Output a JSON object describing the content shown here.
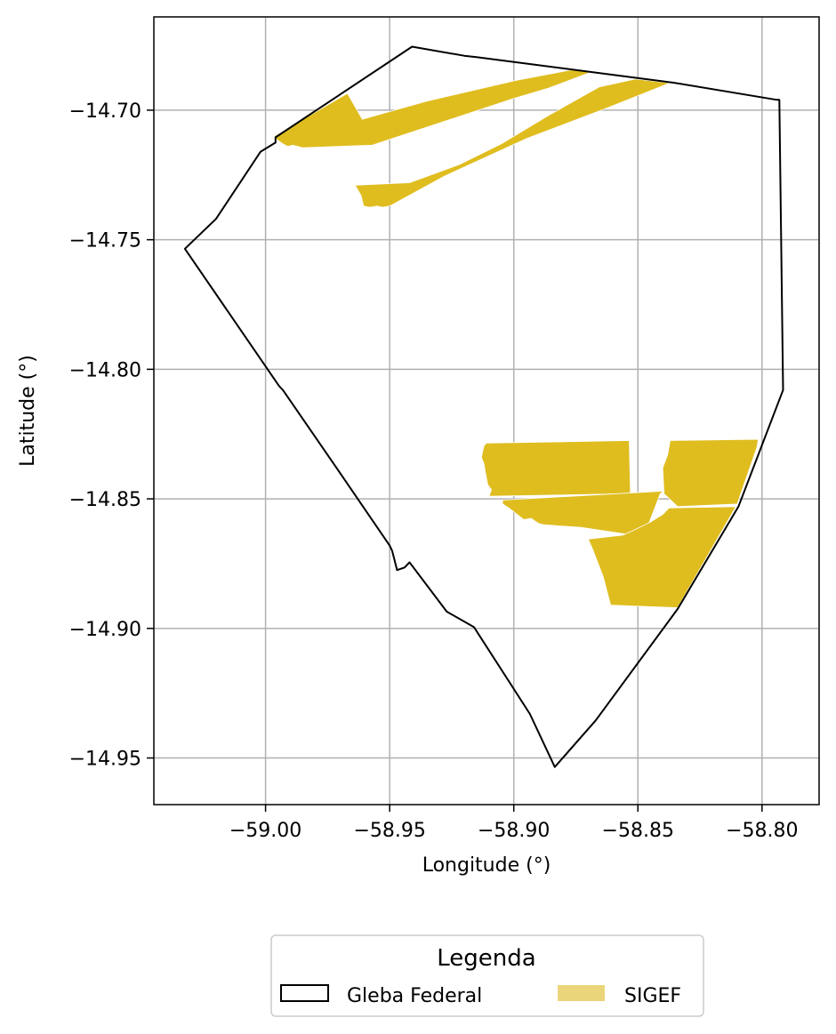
{
  "chart_data": {
    "type": "map",
    "xlabel": "Longitude (°)",
    "ylabel": "Latitude (°)",
    "xlim": [
      -59.045,
      -58.777
    ],
    "ylim": [
      -14.968,
      -14.664
    ],
    "grid": true,
    "x_ticks": [
      {
        "value": -59.0,
        "label": "−59.00"
      },
      {
        "value": -58.95,
        "label": "−58.95"
      },
      {
        "value": -58.9,
        "label": "−58.90"
      },
      {
        "value": -58.85,
        "label": "−58.85"
      },
      {
        "value": -58.8,
        "label": "−58.80"
      }
    ],
    "y_ticks": [
      {
        "value": -14.7,
        "label": "−14.70"
      },
      {
        "value": -14.75,
        "label": "−14.75"
      },
      {
        "value": -14.8,
        "label": "−14.80"
      },
      {
        "value": -14.85,
        "label": "−14.85"
      },
      {
        "value": -14.9,
        "label": "−14.90"
      },
      {
        "value": -14.95,
        "label": "−14.95"
      }
    ],
    "legend": {
      "title": "Legenda",
      "placement": "bottom-center",
      "entries": [
        {
          "key": "gleba",
          "label": "Gleba Federal"
        },
        {
          "key": "sigef",
          "label": "SIGEF"
        }
      ]
    },
    "layers": [
      {
        "key": "gleba",
        "name": "Gleba Federal",
        "stroke": "#000000",
        "fill": "none",
        "polygons": [
          [
            [
              -58.941,
              -14.6755
            ],
            [
              -58.92,
              -14.679
            ],
            [
              -58.915,
              -14.6795
            ],
            [
              -58.835,
              -14.6895
            ],
            [
              -58.794,
              -14.696
            ],
            [
              -58.793,
              -14.696
            ],
            [
              -58.7915,
              -14.808
            ],
            [
              -58.8095,
              -14.853
            ],
            [
              -58.834,
              -14.8925
            ],
            [
              -58.867,
              -14.9355
            ],
            [
              -58.8835,
              -14.9535
            ],
            [
              -58.8935,
              -14.933
            ],
            [
              -58.916,
              -14.8995
            ],
            [
              -58.927,
              -14.8935
            ],
            [
              -58.942,
              -14.8745
            ],
            [
              -58.944,
              -14.8765
            ],
            [
              -58.947,
              -14.8775
            ],
            [
              -58.949,
              -14.87
            ],
            [
              -58.95,
              -14.868
            ],
            [
              -58.97,
              -14.84
            ],
            [
              -58.993,
              -14.808
            ],
            [
              -58.9945,
              -14.8065
            ],
            [
              -59.0325,
              -14.7535
            ],
            [
              -59.02,
              -14.742
            ],
            [
              -59.002,
              -14.716
            ],
            [
              -58.996,
              -14.7125
            ],
            [
              -58.996,
              -14.7105
            ],
            [
              -58.941,
              -14.6755
            ]
          ]
        ]
      },
      {
        "key": "sigef",
        "name": "SIGEF",
        "stroke": "none",
        "fill": "#DFBD1F",
        "polygons": [
          [
            [
              -58.9965,
              -14.71
            ],
            [
              -58.967,
              -14.6935
            ],
            [
              -58.961,
              -14.7035
            ],
            [
              -58.935,
              -14.6965
            ],
            [
              -58.899,
              -14.6885
            ],
            [
              -58.877,
              -14.6845
            ],
            [
              -58.868,
              -14.685
            ],
            [
              -58.886,
              -14.6915
            ],
            [
              -58.9,
              -14.6955
            ],
            [
              -58.957,
              -14.7135
            ],
            [
              -58.985,
              -14.7145
            ],
            [
              -58.989,
              -14.7135
            ],
            [
              -58.991,
              -14.714
            ],
            [
              -58.993,
              -14.713
            ],
            [
              -58.996,
              -14.711
            ]
          ],
          [
            [
              -58.837,
              -14.6895
            ],
            [
              -58.851,
              -14.688
            ],
            [
              -58.8655,
              -14.691
            ],
            [
              -58.886,
              -14.702
            ],
            [
              -58.905,
              -14.713
            ],
            [
              -58.922,
              -14.721
            ],
            [
              -58.942,
              -14.728
            ],
            [
              -58.964,
              -14.729
            ],
            [
              -58.963,
              -14.7305
            ],
            [
              -58.9615,
              -14.733
            ],
            [
              -58.9605,
              -14.737
            ],
            [
              -58.958,
              -14.7375
            ],
            [
              -58.955,
              -14.737
            ],
            [
              -58.953,
              -14.7375
            ],
            [
              -58.95,
              -14.737
            ],
            [
              -58.928,
              -14.7255
            ],
            [
              -58.895,
              -14.711
            ],
            [
              -58.862,
              -14.699
            ]
          ],
          [
            [
              -58.911,
              -14.8285
            ],
            [
              -58.8535,
              -14.8275
            ],
            [
              -58.853,
              -14.848
            ],
            [
              -58.91,
              -14.849
            ],
            [
              -58.909,
              -14.8465
            ],
            [
              -58.9105,
              -14.8445
            ],
            [
              -58.911,
              -14.842
            ],
            [
              -58.9115,
              -14.8395
            ],
            [
              -58.912,
              -14.8365
            ],
            [
              -58.913,
              -14.834
            ],
            [
              -58.9125,
              -14.8315
            ],
            [
              -58.912,
              -14.8295
            ]
          ],
          [
            [
              -58.837,
              -14.8275
            ],
            [
              -58.8015,
              -14.827
            ],
            [
              -58.802,
              -14.83
            ],
            [
              -58.81,
              -14.852
            ],
            [
              -58.834,
              -14.853
            ],
            [
              -58.8395,
              -14.848
            ],
            [
              -58.84,
              -14.838
            ],
            [
              -58.838,
              -14.833
            ]
          ],
          [
            [
              -58.9045,
              -14.8505
            ],
            [
              -58.8395,
              -14.847
            ],
            [
              -58.841,
              -14.848
            ],
            [
              -58.845,
              -14.858
            ],
            [
              -58.8475,
              -14.8645
            ],
            [
              -58.852,
              -14.864
            ],
            [
              -58.873,
              -14.861
            ],
            [
              -58.888,
              -14.86
            ],
            [
              -58.89,
              -14.8595
            ],
            [
              -58.893,
              -14.8575
            ],
            [
              -58.896,
              -14.858
            ],
            [
              -58.9,
              -14.855
            ],
            [
              -58.902,
              -14.8535
            ],
            [
              -58.9045,
              -14.852
            ]
          ],
          [
            [
              -58.8375,
              -14.8535
            ],
            [
              -58.8105,
              -14.853
            ],
            [
              -58.834,
              -14.892
            ],
            [
              -58.861,
              -14.891
            ],
            [
              -58.8625,
              -14.8855
            ],
            [
              -58.864,
              -14.88
            ],
            [
              -58.866,
              -14.875
            ],
            [
              -58.868,
              -14.87
            ],
            [
              -58.87,
              -14.8655
            ],
            [
              -58.856,
              -14.864
            ],
            [
              -58.8515,
              -14.862
            ],
            [
              -58.845,
              -14.859
            ],
            [
              -58.84,
              -14.856
            ]
          ]
        ]
      }
    ]
  }
}
